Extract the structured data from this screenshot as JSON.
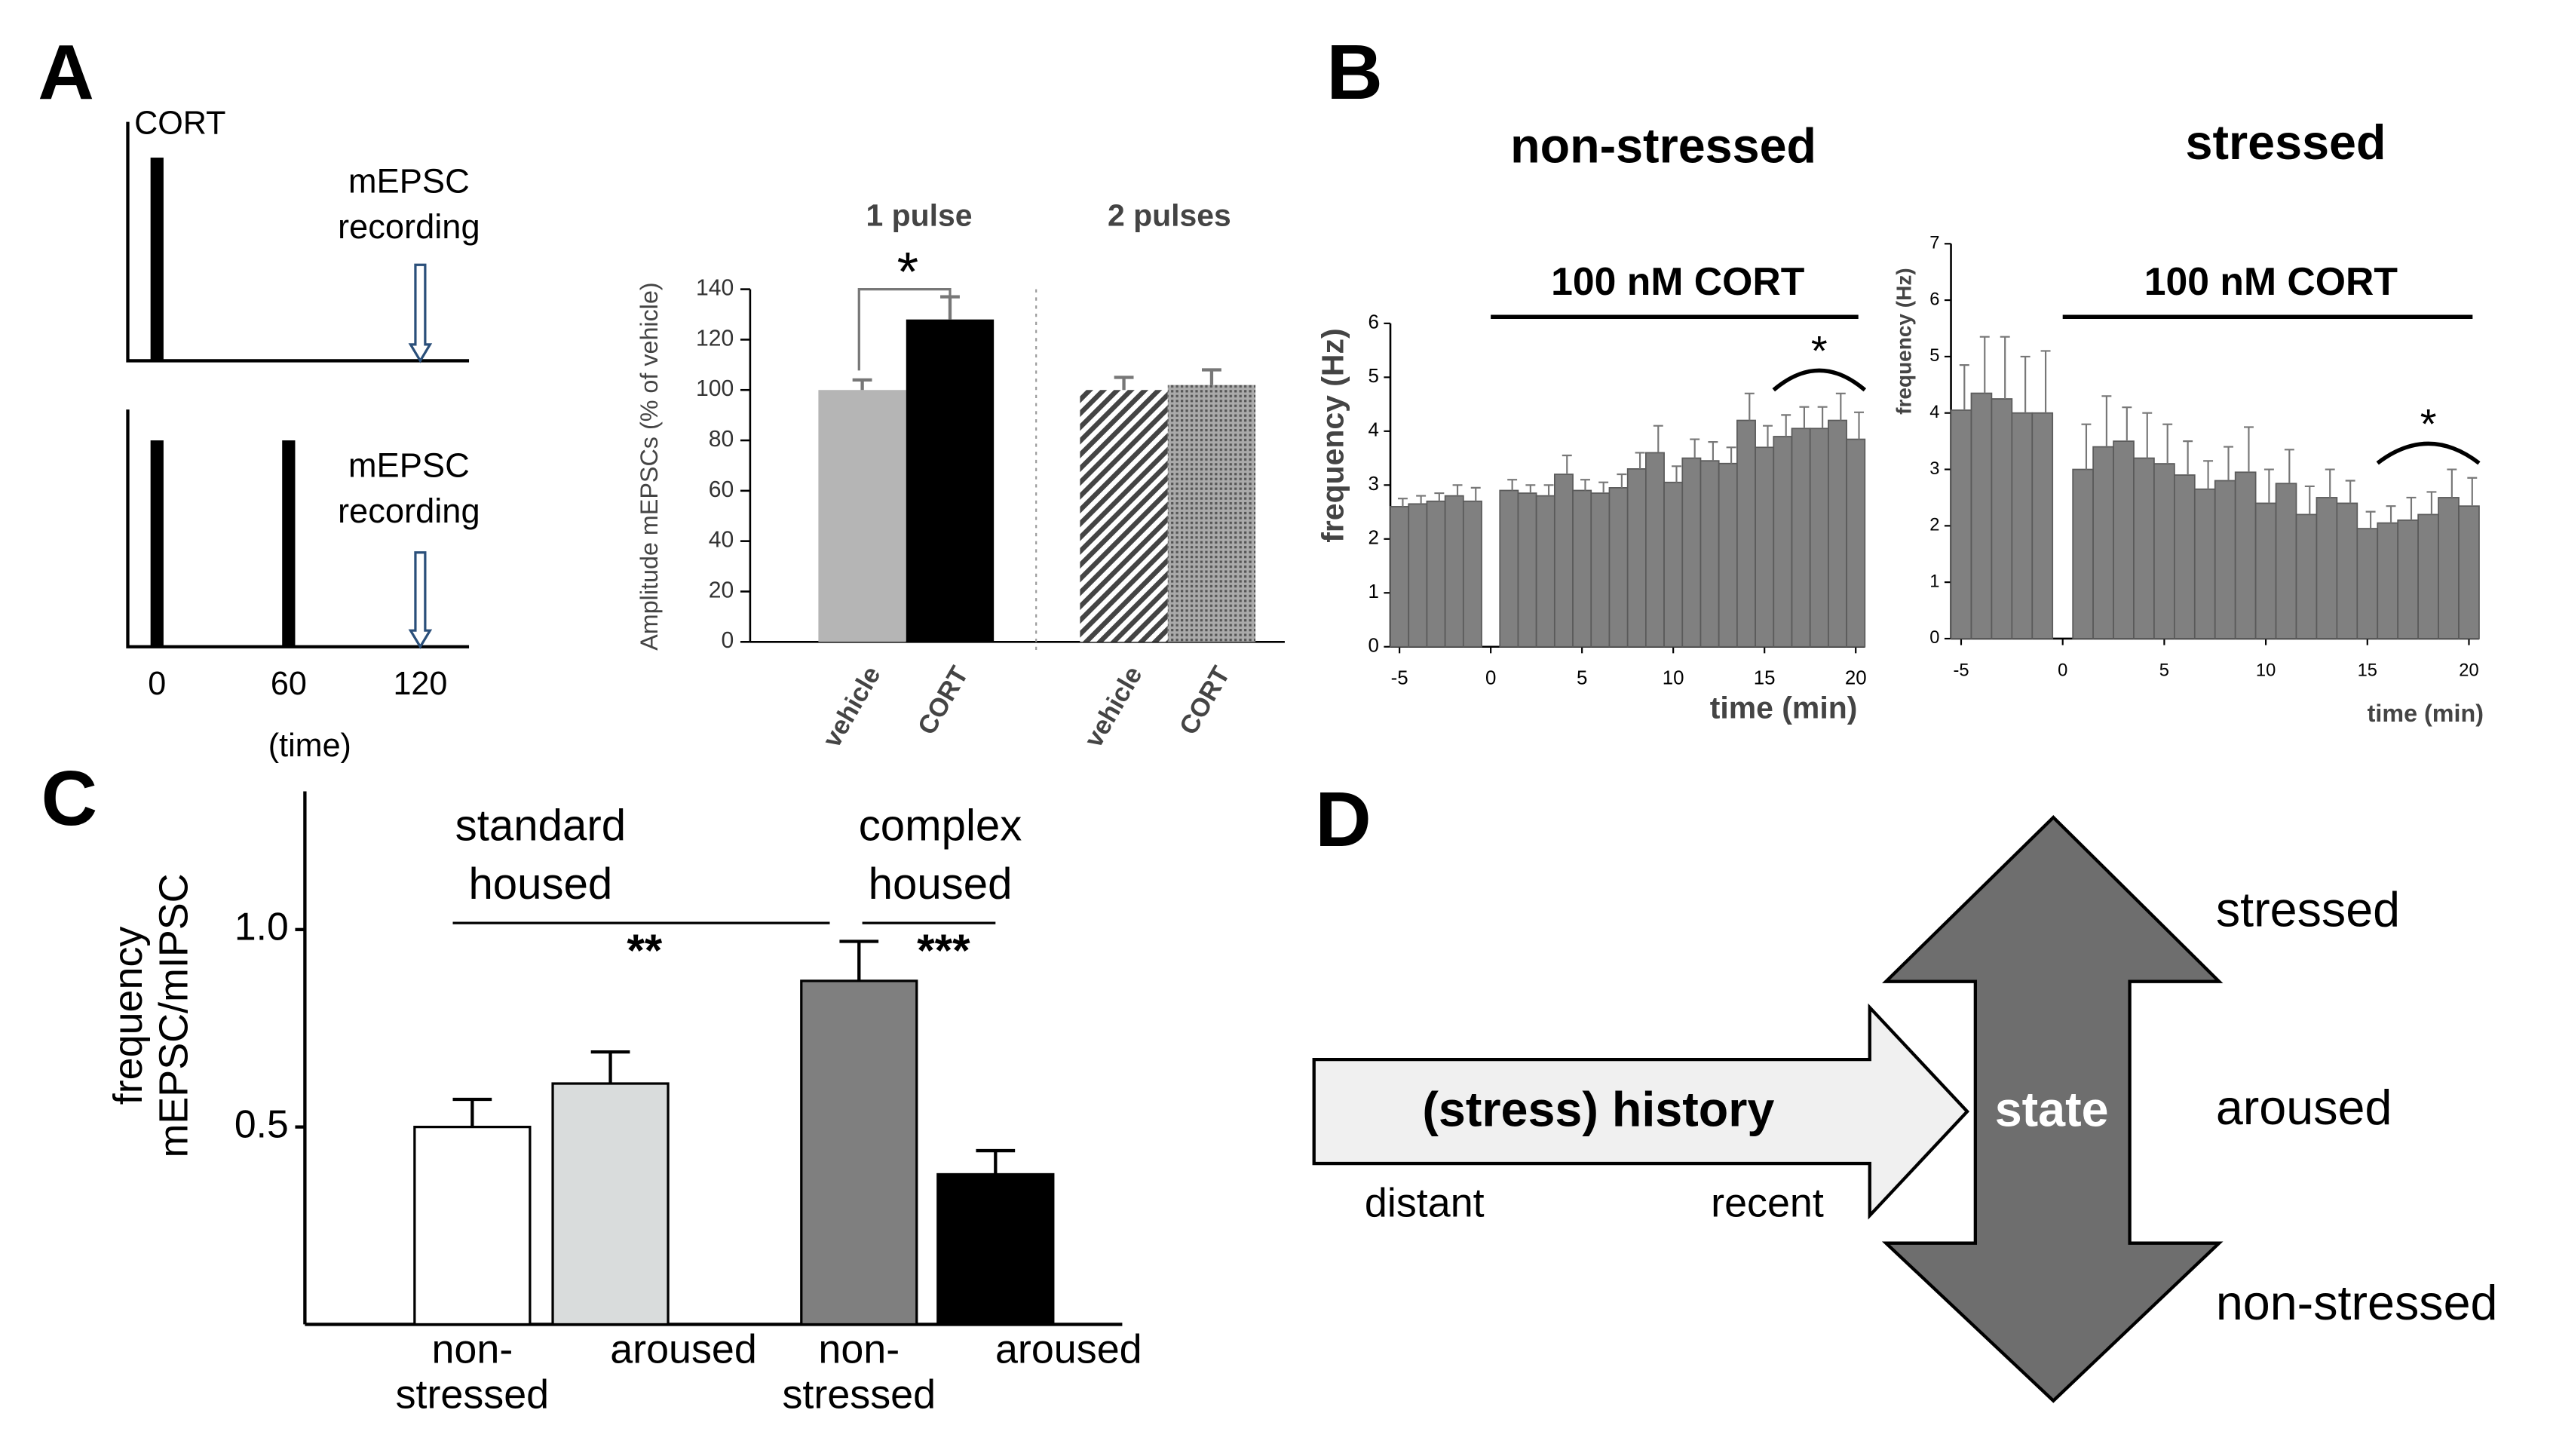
{
  "panels": {
    "a": "A",
    "b": "B",
    "c": "C",
    "d": "D"
  },
  "timeline": {
    "pulse_label": "CORT",
    "recording_label": [
      "mEPSC",
      "recording"
    ],
    "ticks": [
      0,
      60,
      120
    ],
    "pulses_top": [
      0
    ],
    "pulses_bottom": [
      0,
      60
    ],
    "recording_at": 120,
    "axis_label": "(time)"
  },
  "chart_data": [
    {
      "type": "bar",
      "y_label": "Amplitude mEPSCs (% of vehicle)",
      "groups": [
        "1 pulse",
        "2 pulses"
      ],
      "categories": [
        "vehicle",
        "CORT",
        "vehicle",
        "CORT"
      ],
      "values": [
        100,
        128,
        100,
        102
      ],
      "errors": [
        4,
        9,
        5,
        6
      ],
      "fills": [
        "#b5b5b5",
        "#000000",
        "hatch",
        "dots"
      ],
      "ylim": [
        0,
        140
      ],
      "yticks": [
        0,
        20,
        40,
        60,
        80,
        100,
        120,
        140
      ],
      "significance": "*"
    },
    {
      "type": "histogram",
      "title": "non-stressed",
      "annotation": "100 nM CORT",
      "significance": "*",
      "x_label": "time (min)",
      "y_label": "frequency (Hz)",
      "color": "#808080",
      "x": [
        -5,
        -4,
        -3,
        -2,
        -1,
        1,
        2,
        3,
        4,
        5,
        6,
        7,
        8,
        9,
        10,
        11,
        12,
        13,
        14,
        15,
        16,
        17,
        18,
        19,
        20
      ],
      "values": [
        2.6,
        2.65,
        2.7,
        2.8,
        2.7,
        2.9,
        2.85,
        2.8,
        3.2,
        2.9,
        2.85,
        2.95,
        3.3,
        3.6,
        3.05,
        3.5,
        3.45,
        3.4,
        4.2,
        3.7,
        3.9,
        4.05,
        4.05,
        4.2,
        3.85
      ],
      "errors": [
        0.15,
        0.15,
        0.15,
        0.2,
        0.25,
        0.2,
        0.15,
        0.2,
        0.35,
        0.2,
        0.2,
        0.25,
        0.3,
        0.5,
        0.3,
        0.35,
        0.35,
        0.3,
        0.5,
        0.4,
        0.4,
        0.4,
        0.4,
        0.5,
        0.5
      ],
      "xlim": [
        -5.5,
        20.5
      ],
      "xticks": [
        -5,
        0,
        5,
        10,
        15,
        20
      ],
      "ylim": [
        0,
        6
      ],
      "yticks": [
        0,
        1,
        2,
        3,
        4,
        5,
        6
      ]
    },
    {
      "type": "histogram",
      "title": "stressed",
      "annotation": "100 nM CORT",
      "significance": "*",
      "x_label": "time (min)",
      "y_label": "frequency (Hz)",
      "color": "#808080",
      "x": [
        -5,
        -4,
        -3,
        -2,
        -1,
        1,
        2,
        3,
        4,
        5,
        6,
        7,
        8,
        9,
        10,
        11,
        12,
        13,
        14,
        15,
        16,
        17,
        18,
        19,
        20
      ],
      "values": [
        4.05,
        4.35,
        4.25,
        4.0,
        4.0,
        3.0,
        3.4,
        3.5,
        3.2,
        3.1,
        2.9,
        2.65,
        2.8,
        2.95,
        2.4,
        2.75,
        2.2,
        2.5,
        2.4,
        1.95,
        2.05,
        2.1,
        2.2,
        2.5,
        2.35
      ],
      "errors": [
        0.8,
        1.0,
        1.1,
        1.0,
        1.1,
        0.8,
        0.9,
        0.6,
        0.8,
        0.7,
        0.6,
        0.5,
        0.6,
        0.8,
        0.6,
        0.6,
        0.5,
        0.5,
        0.4,
        0.3,
        0.3,
        0.4,
        0.4,
        0.5,
        0.5
      ],
      "xlim": [
        -5.5,
        20.5
      ],
      "xticks": [
        -5,
        0,
        5,
        10,
        15,
        20
      ],
      "ylim": [
        0,
        7
      ],
      "yticks": [
        0,
        1,
        2,
        3,
        4,
        5,
        6,
        7
      ]
    },
    {
      "type": "bar",
      "y_label": [
        "frequency",
        "mEPSC/mIPSC"
      ],
      "groups": [
        [
          "standard",
          "housed"
        ],
        [
          "complex",
          "housed"
        ]
      ],
      "significance": [
        "**",
        "***"
      ],
      "categories": [
        [
          "non-",
          "stressed"
        ],
        [
          "aroused"
        ],
        [
          "non-",
          "stressed"
        ],
        [
          "aroused"
        ]
      ],
      "values": [
        0.5,
        0.61,
        0.87,
        0.38
      ],
      "errors": [
        0.07,
        0.08,
        0.1,
        0.06
      ],
      "fills": [
        "#ffffff",
        "#d9dcdc",
        "#7f7f7f",
        "#000000"
      ],
      "ylim": [
        0,
        1.35
      ],
      "yticks": [
        0.5,
        {
          "value": 1,
          "label": "1.0"
        }
      ]
    }
  ],
  "diagram": {
    "history": "(stress) history",
    "distant": "distant",
    "recent": "recent",
    "state": "state",
    "levels": [
      "stressed",
      "aroused",
      "non-stressed"
    ]
  }
}
